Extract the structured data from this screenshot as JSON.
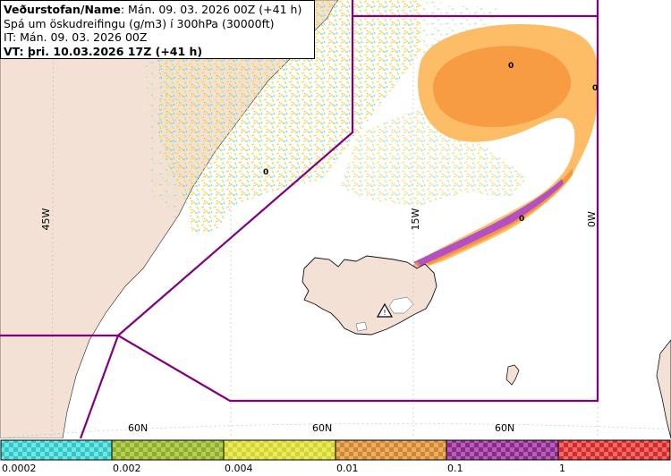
{
  "header": {
    "line1_bold": "Veðurstofan/Name",
    "line1_rest": ": Mán. 09. 03. 2026 00Z (+41 h)",
    "line2": "Spá um öskudreifingu (g/m3) í 300hPa (30000ft)",
    "line3": "IT: Mán. 09. 03. 2026 00Z",
    "line4": "VT: þri. 10.03.2026 17Z (+41 h)"
  },
  "map": {
    "longitude_labels": [
      "45W",
      "15W",
      "0W"
    ],
    "latitude_labels": [
      "60N",
      "60N",
      "60N"
    ],
    "contour_labels": [
      "0",
      "0",
      "0",
      "0"
    ]
  },
  "legend": {
    "ticks": [
      "0.0002",
      "0.002",
      "0.004",
      "0.01",
      "0.1",
      "1"
    ],
    "colors": [
      "#2ec8c8",
      "#8fae2a",
      "#d4d42a",
      "#d4862a",
      "#8a2a8a",
      "#d42a2a"
    ],
    "colors_light": [
      "#78e3e3",
      "#b6cf5c",
      "#eaea6a",
      "#e8ae6c",
      "#b65fb6",
      "#ec6c6c"
    ]
  },
  "colors": {
    "land": "#f2e1d4",
    "boundary": "#800080",
    "ash_light": "#fdbd67",
    "ash_mid": "#f6973d",
    "ash_heavy": "#b351c3",
    "ash_thin_yellow": "#f7e86b",
    "ash_thin_cyan": "#7fe3e3"
  }
}
